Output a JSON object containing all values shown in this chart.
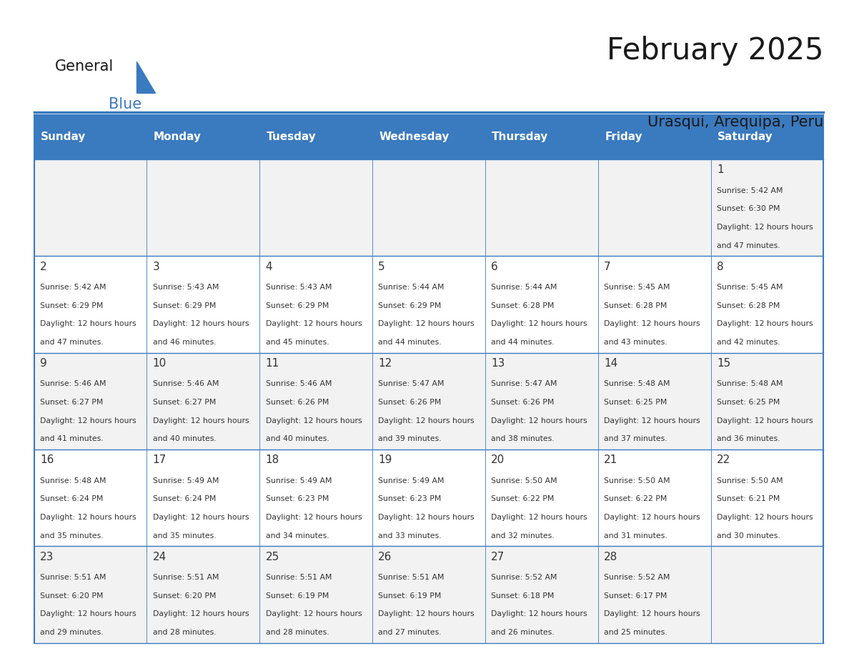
{
  "title": "February 2025",
  "subtitle": "Urasqui, Arequipa, Peru",
  "days_of_week": [
    "Sunday",
    "Monday",
    "Tuesday",
    "Wednesday",
    "Thursday",
    "Friday",
    "Saturday"
  ],
  "header_bg": "#3a7abf",
  "header_text": "#ffffff",
  "cell_bg_odd": "#f2f2f2",
  "cell_bg_even": "#ffffff",
  "border_color": "#3a7abf",
  "text_color": "#333333",
  "day_num_color": "#333333",
  "calendar_data": [
    [
      null,
      null,
      null,
      null,
      null,
      null,
      {
        "day": 1,
        "sunrise": "5:42 AM",
        "sunset": "6:30 PM",
        "daylight": "12 hours and 47 minutes."
      }
    ],
    [
      {
        "day": 2,
        "sunrise": "5:42 AM",
        "sunset": "6:29 PM",
        "daylight": "12 hours and 47 minutes."
      },
      {
        "day": 3,
        "sunrise": "5:43 AM",
        "sunset": "6:29 PM",
        "daylight": "12 hours and 46 minutes."
      },
      {
        "day": 4,
        "sunrise": "5:43 AM",
        "sunset": "6:29 PM",
        "daylight": "12 hours and 45 minutes."
      },
      {
        "day": 5,
        "sunrise": "5:44 AM",
        "sunset": "6:29 PM",
        "daylight": "12 hours and 44 minutes."
      },
      {
        "day": 6,
        "sunrise": "5:44 AM",
        "sunset": "6:28 PM",
        "daylight": "12 hours and 44 minutes."
      },
      {
        "day": 7,
        "sunrise": "5:45 AM",
        "sunset": "6:28 PM",
        "daylight": "12 hours and 43 minutes."
      },
      {
        "day": 8,
        "sunrise": "5:45 AM",
        "sunset": "6:28 PM",
        "daylight": "12 hours and 42 minutes."
      }
    ],
    [
      {
        "day": 9,
        "sunrise": "5:46 AM",
        "sunset": "6:27 PM",
        "daylight": "12 hours and 41 minutes."
      },
      {
        "day": 10,
        "sunrise": "5:46 AM",
        "sunset": "6:27 PM",
        "daylight": "12 hours and 40 minutes."
      },
      {
        "day": 11,
        "sunrise": "5:46 AM",
        "sunset": "6:26 PM",
        "daylight": "12 hours and 40 minutes."
      },
      {
        "day": 12,
        "sunrise": "5:47 AM",
        "sunset": "6:26 PM",
        "daylight": "12 hours and 39 minutes."
      },
      {
        "day": 13,
        "sunrise": "5:47 AM",
        "sunset": "6:26 PM",
        "daylight": "12 hours and 38 minutes."
      },
      {
        "day": 14,
        "sunrise": "5:48 AM",
        "sunset": "6:25 PM",
        "daylight": "12 hours and 37 minutes."
      },
      {
        "day": 15,
        "sunrise": "5:48 AM",
        "sunset": "6:25 PM",
        "daylight": "12 hours and 36 minutes."
      }
    ],
    [
      {
        "day": 16,
        "sunrise": "5:48 AM",
        "sunset": "6:24 PM",
        "daylight": "12 hours and 35 minutes."
      },
      {
        "day": 17,
        "sunrise": "5:49 AM",
        "sunset": "6:24 PM",
        "daylight": "12 hours and 35 minutes."
      },
      {
        "day": 18,
        "sunrise": "5:49 AM",
        "sunset": "6:23 PM",
        "daylight": "12 hours and 34 minutes."
      },
      {
        "day": 19,
        "sunrise": "5:49 AM",
        "sunset": "6:23 PM",
        "daylight": "12 hours and 33 minutes."
      },
      {
        "day": 20,
        "sunrise": "5:50 AM",
        "sunset": "6:22 PM",
        "daylight": "12 hours and 32 minutes."
      },
      {
        "day": 21,
        "sunrise": "5:50 AM",
        "sunset": "6:22 PM",
        "daylight": "12 hours and 31 minutes."
      },
      {
        "day": 22,
        "sunrise": "5:50 AM",
        "sunset": "6:21 PM",
        "daylight": "12 hours and 30 minutes."
      }
    ],
    [
      {
        "day": 23,
        "sunrise": "5:51 AM",
        "sunset": "6:20 PM",
        "daylight": "12 hours and 29 minutes."
      },
      {
        "day": 24,
        "sunrise": "5:51 AM",
        "sunset": "6:20 PM",
        "daylight": "12 hours and 28 minutes."
      },
      {
        "day": 25,
        "sunrise": "5:51 AM",
        "sunset": "6:19 PM",
        "daylight": "12 hours and 28 minutes."
      },
      {
        "day": 26,
        "sunrise": "5:51 AM",
        "sunset": "6:19 PM",
        "daylight": "12 hours and 27 minutes."
      },
      {
        "day": 27,
        "sunrise": "5:52 AM",
        "sunset": "6:18 PM",
        "daylight": "12 hours and 26 minutes."
      },
      {
        "day": 28,
        "sunrise": "5:52 AM",
        "sunset": "6:17 PM",
        "daylight": "12 hours and 25 minutes."
      },
      null
    ]
  ],
  "logo_text_general": "General",
  "logo_text_blue": "Blue",
  "logo_color_general": "#1a1a1a",
  "logo_color_blue": "#3a7abf"
}
